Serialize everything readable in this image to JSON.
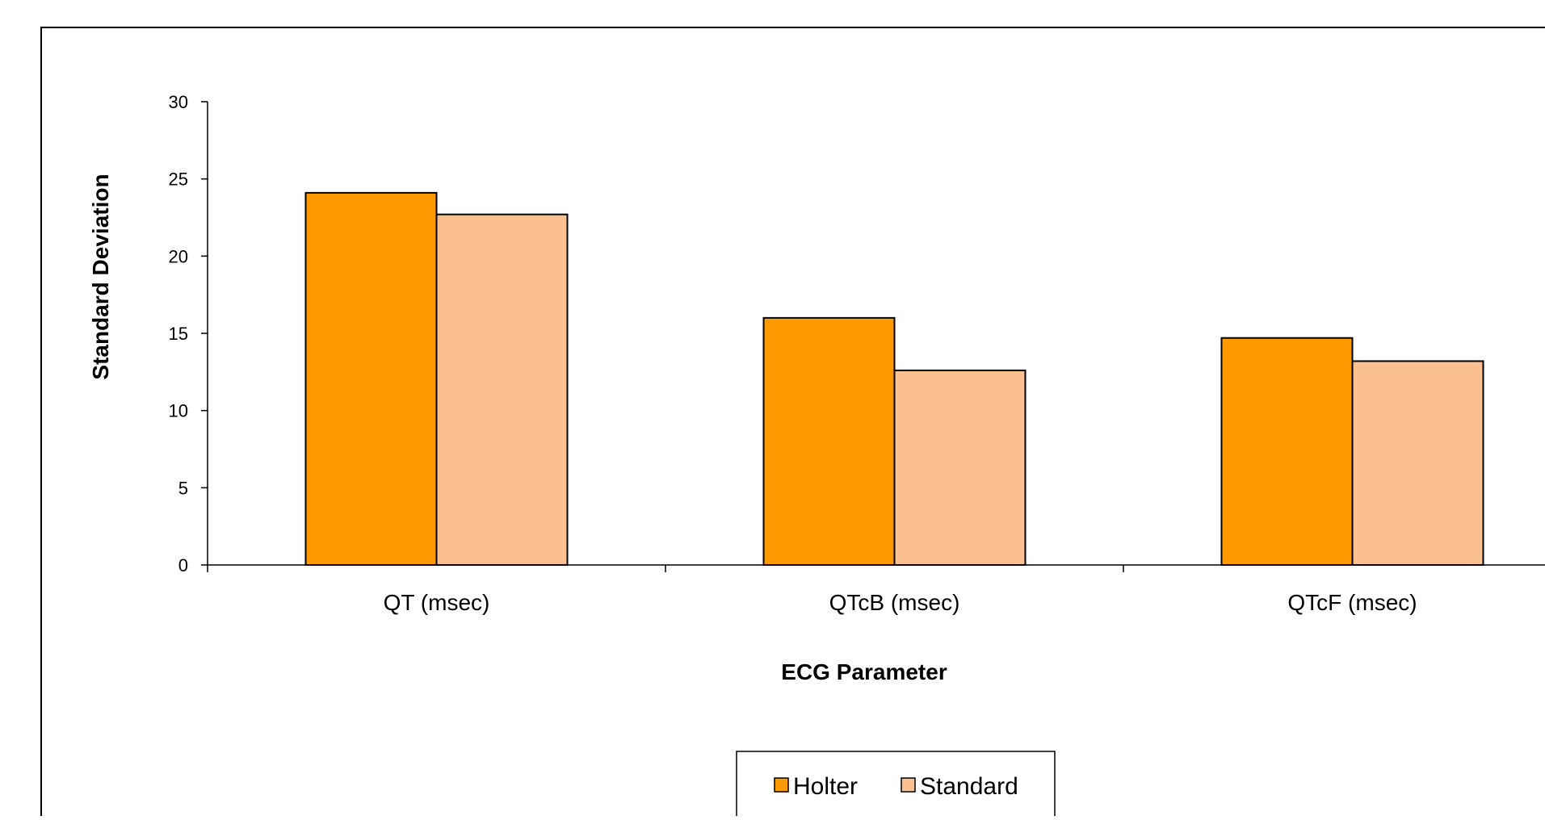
{
  "chart_data": {
    "type": "bar",
    "title": "",
    "xlabel": "ECG Parameter",
    "ylabel": "Standard Deviation",
    "ylim": [
      0,
      30
    ],
    "yticks": [
      0,
      5,
      10,
      15,
      20,
      25,
      30
    ],
    "categories": [
      "QT (msec)",
      "QTcB (msec)",
      "QTcF (msec)"
    ],
    "series": [
      {
        "name": "Holter",
        "color": "#FF9900",
        "values": [
          24.1,
          16.0,
          14.7
        ]
      },
      {
        "name": "Standard",
        "color": "#FAC090",
        "values": [
          22.7,
          12.6,
          13.2
        ]
      }
    ],
    "grid": false,
    "legend_position": "bottom"
  }
}
